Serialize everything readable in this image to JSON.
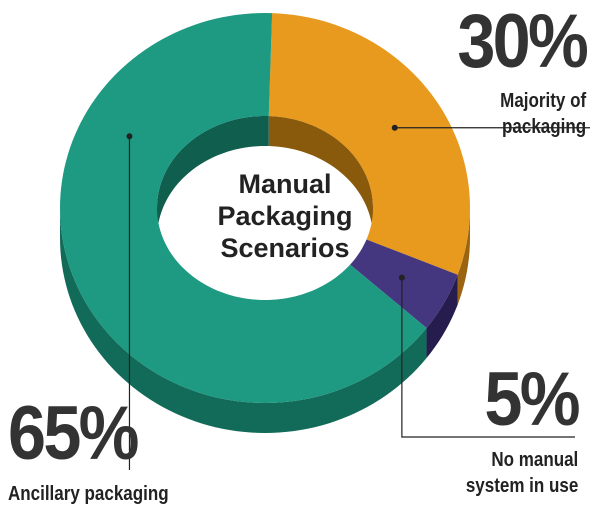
{
  "chart_data": {
    "type": "pie",
    "title": "Manual Packaging Scenarios",
    "title_lines": [
      "Manual",
      "Packaging",
      "Scenarios"
    ],
    "categories": [
      "Majority of packaging",
      "No manual system in use",
      "Ancillary packaging"
    ],
    "values": [
      30,
      5,
      65
    ],
    "data_labels": [
      "30%",
      "5%",
      "65%"
    ],
    "category_lines": [
      [
        "Majority of",
        "packaging"
      ],
      [
        "No manual",
        "system in use"
      ],
      [
        "Ancillary packaging"
      ]
    ],
    "colors": [
      "#E89A1E",
      "#443780",
      "#1E9A82"
    ],
    "side_colors": [
      "#9A6410",
      "#261D4E",
      "#126B59"
    ],
    "inner_colors": [
      "#8A5A0C",
      "#1F1840",
      "#0F5E4E"
    ],
    "style": "3d-donut",
    "legend": "none"
  }
}
